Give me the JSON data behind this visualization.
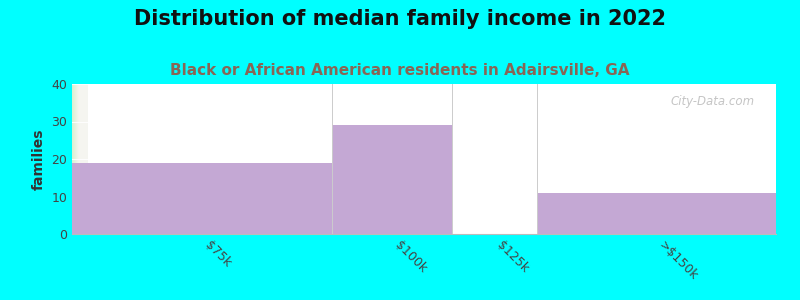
{
  "title": "Distribution of median family income in 2022",
  "subtitle": "Black or African American residents in Adairsville, GA",
  "categories": [
    "$75k",
    "$100k",
    "$125k",
    ">$150k"
  ],
  "values": [
    19,
    29,
    0,
    11
  ],
  "bar_color": "#c4a8d4",
  "background_color": "#00ffff",
  "plot_bg_left": "#d8f0d0",
  "plot_bg_right": "#f0f0f0",
  "ylabel": "families",
  "ylim": [
    0,
    40
  ],
  "yticks": [
    0,
    10,
    20,
    30,
    40
  ],
  "watermark": "City-Data.com",
  "title_fontsize": 15,
  "subtitle_fontsize": 11,
  "subtitle_color": "#886655",
  "tick_rotation": -45
}
